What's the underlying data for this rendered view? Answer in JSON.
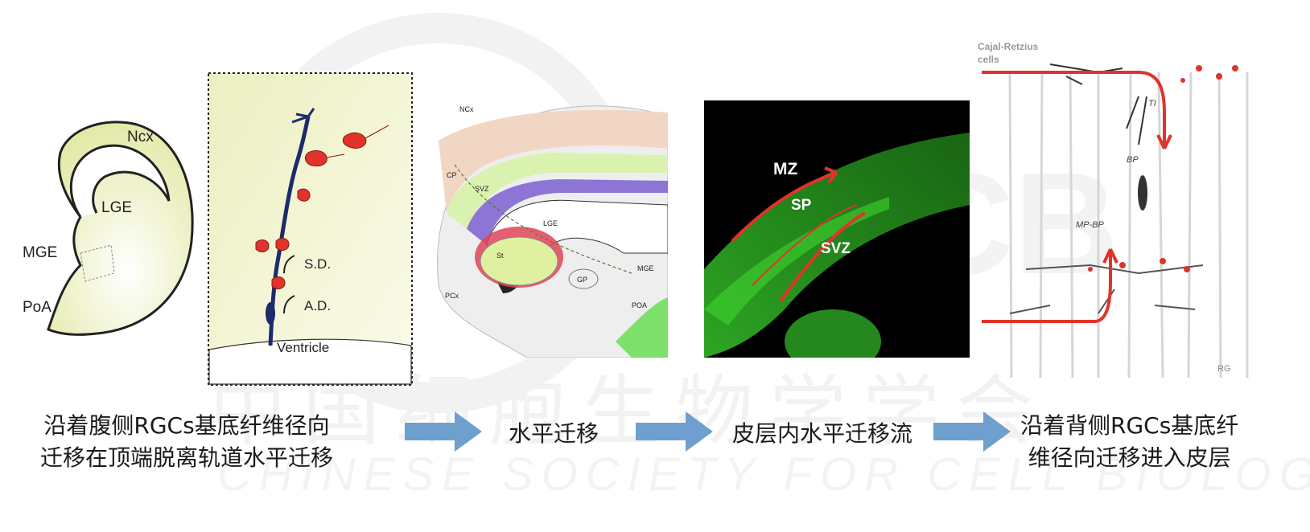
{
  "panels": {
    "brain_section": {
      "labels": {
        "ncx": "Ncx",
        "lge": "LGE",
        "mge": "MGE",
        "poa": "PoA"
      }
    },
    "radial_glia": {
      "labels": {
        "sd": "S.D.",
        "ad": "A.D.",
        "ventricle": "Ventricle"
      }
    },
    "forebrain_3d": {
      "labels": {
        "ncx": "NCx",
        "cp": "CP",
        "svz": "SVZ",
        "lge": "LGE",
        "st": "St",
        "gp": "GP",
        "mge": "MGE",
        "pcx": "PCx",
        "poa": "POA"
      }
    },
    "fluorescence": {
      "labels": {
        "mz": "MZ",
        "sp": "SP",
        "svz": "SVZ"
      }
    },
    "cortex_schematic": {
      "labels": {
        "cajal_line1": "Cajal-Retzius",
        "cajal_line2": "cells",
        "ti": "TI",
        "bp": "BP",
        "mpbp": "MP-BP",
        "rg": "RG"
      }
    }
  },
  "captions": {
    "step1_line1": "沿着腹侧RGCs基底纤维径向",
    "step1_line2": "迁移在顶端脱离轨道水平迁移",
    "step2": "水平迁移",
    "step3": "皮层内水平迁移流",
    "step4_line1": "沿着背侧RGCs基底纤",
    "step4_line2": "维径向迁移进入皮层"
  },
  "watermark": {
    "cn": "中国细胞生物学学会",
    "en": "CHINESE SOCIETY FOR CELL BIOLOGY",
    "logo": "CSCB"
  },
  "colors": {
    "arrow_blue": "#6f9fcf",
    "neuron_red": "#e0342a",
    "glia_navy": "#1d2a6b",
    "green_fluor": "#3fd42f",
    "pale_green": "#eef0c8"
  }
}
